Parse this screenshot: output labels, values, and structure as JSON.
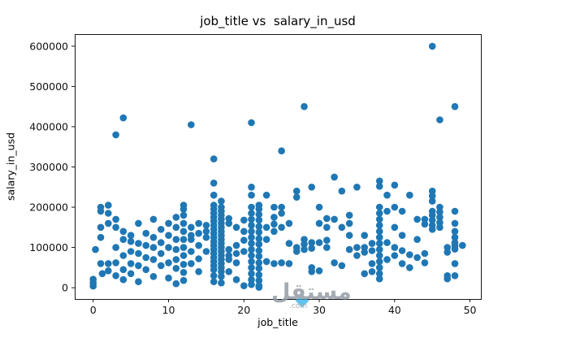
{
  "chart_data": {
    "type": "scatter",
    "title": "job_title vs  salary_in_usd",
    "xlabel": "job_title",
    "ylabel": "salary_in_usd",
    "xlim": [
      -2.45,
      51.45
    ],
    "ylim": [
      -28000,
      630000
    ],
    "x_ticks": [
      0,
      10,
      20,
      30,
      40,
      50
    ],
    "y_ticks": [
      0,
      100000,
      200000,
      300000,
      400000,
      500000,
      600000
    ],
    "marker_color": "#1f77b4",
    "grid": false,
    "legend": null,
    "points": [
      [
        0,
        4000
      ],
      [
        0,
        12000
      ],
      [
        0,
        21000
      ],
      [
        0.3,
        95000
      ],
      [
        1,
        200000
      ],
      [
        1,
        190000
      ],
      [
        1,
        150000
      ],
      [
        1,
        125000
      ],
      [
        1,
        60000
      ],
      [
        1.2,
        35000
      ],
      [
        2,
        205000
      ],
      [
        2,
        185000
      ],
      [
        2,
        160000
      ],
      [
        2,
        60000
      ],
      [
        2,
        42000
      ],
      [
        3,
        380000
      ],
      [
        3,
        170000
      ],
      [
        3,
        150000
      ],
      [
        3,
        100000
      ],
      [
        3,
        62000
      ],
      [
        3,
        30000
      ],
      [
        4,
        422000
      ],
      [
        4,
        140000
      ],
      [
        4,
        120000
      ],
      [
        4,
        80000
      ],
      [
        4,
        45000
      ],
      [
        4,
        20000
      ],
      [
        5,
        130000
      ],
      [
        5,
        115000
      ],
      [
        5,
        90000
      ],
      [
        5,
        60000
      ],
      [
        5,
        35000
      ],
      [
        6,
        160000
      ],
      [
        6,
        110000
      ],
      [
        6,
        85000
      ],
      [
        6,
        55000
      ],
      [
        6,
        15000
      ],
      [
        7,
        135000
      ],
      [
        7,
        105000
      ],
      [
        7,
        75000
      ],
      [
        7,
        45000
      ],
      [
        8,
        170000
      ],
      [
        8,
        125000
      ],
      [
        8,
        100000
      ],
      [
        8,
        70000
      ],
      [
        8,
        28000
      ],
      [
        9,
        145000
      ],
      [
        9,
        112000
      ],
      [
        9,
        85000
      ],
      [
        9,
        55000
      ],
      [
        10,
        160000
      ],
      [
        10,
        130000
      ],
      [
        10,
        100000
      ],
      [
        10,
        62000
      ],
      [
        10,
        24000
      ],
      [
        11,
        175000
      ],
      [
        11,
        150000
      ],
      [
        11,
        120000
      ],
      [
        11,
        95000
      ],
      [
        11,
        70000
      ],
      [
        11,
        48000
      ],
      [
        11,
        10000
      ],
      [
        12,
        205000
      ],
      [
        12,
        195000
      ],
      [
        12,
        180000
      ],
      [
        12,
        160000
      ],
      [
        12,
        140000
      ],
      [
        12,
        120000
      ],
      [
        12,
        100000
      ],
      [
        12,
        80000
      ],
      [
        12,
        58000
      ],
      [
        12,
        38000
      ],
      [
        12,
        18000
      ],
      [
        13,
        405000
      ],
      [
        13,
        150000
      ],
      [
        13,
        130000
      ],
      [
        13,
        120000
      ],
      [
        13,
        90000
      ],
      [
        13,
        60000
      ],
      [
        14,
        160000
      ],
      [
        14,
        135000
      ],
      [
        14,
        105000
      ],
      [
        14,
        72000
      ],
      [
        14,
        40000
      ],
      [
        15,
        155000
      ],
      [
        15,
        140000
      ],
      [
        15,
        125000
      ],
      [
        15,
        90000
      ],
      [
        16,
        320000
      ],
      [
        16,
        260000
      ],
      [
        16,
        230000
      ],
      [
        16,
        205000
      ],
      [
        16,
        195000
      ],
      [
        16,
        185000
      ],
      [
        16,
        175000
      ],
      [
        16,
        165000
      ],
      [
        16,
        155000
      ],
      [
        16,
        145000
      ],
      [
        16,
        135000
      ],
      [
        16,
        125000
      ],
      [
        16,
        115000
      ],
      [
        16,
        105000
      ],
      [
        16,
        95000
      ],
      [
        16,
        85000
      ],
      [
        16,
        75000
      ],
      [
        16,
        65000
      ],
      [
        16,
        55000
      ],
      [
        16,
        45000
      ],
      [
        16,
        30000
      ],
      [
        16,
        15000
      ],
      [
        17,
        215000
      ],
      [
        17,
        200000
      ],
      [
        17,
        190000
      ],
      [
        17,
        180000
      ],
      [
        17,
        170000
      ],
      [
        17,
        160000
      ],
      [
        17,
        150000
      ],
      [
        17,
        140000
      ],
      [
        17,
        130000
      ],
      [
        17,
        120000
      ],
      [
        17,
        110000
      ],
      [
        17,
        100000
      ],
      [
        17,
        90000
      ],
      [
        17,
        80000
      ],
      [
        17,
        70000
      ],
      [
        17,
        60000
      ],
      [
        17,
        50000
      ],
      [
        17,
        40000
      ],
      [
        17,
        28000
      ],
      [
        17,
        12000
      ],
      [
        18,
        172000
      ],
      [
        18,
        160000
      ],
      [
        18,
        95000
      ],
      [
        18,
        80000
      ],
      [
        18,
        70000
      ],
      [
        18,
        40000
      ],
      [
        19,
        150000
      ],
      [
        19,
        105000
      ],
      [
        19,
        85000
      ],
      [
        19,
        62000
      ],
      [
        19,
        20000
      ],
      [
        20,
        168000
      ],
      [
        20,
        140000
      ],
      [
        20,
        118000
      ],
      [
        20,
        90000
      ],
      [
        20,
        5000
      ],
      [
        21,
        410000
      ],
      [
        21,
        250000
      ],
      [
        21,
        230000
      ],
      [
        21,
        200000
      ],
      [
        21,
        185000
      ],
      [
        21,
        170000
      ],
      [
        21,
        155000
      ],
      [
        21,
        140000
      ],
      [
        21,
        125000
      ],
      [
        21,
        110000
      ],
      [
        21,
        95000
      ],
      [
        21,
        80000
      ],
      [
        21,
        65000
      ],
      [
        21,
        50000
      ],
      [
        21,
        35000
      ],
      [
        21,
        20000
      ],
      [
        21,
        8000
      ],
      [
        22,
        205000
      ],
      [
        22,
        195000
      ],
      [
        22,
        182000
      ],
      [
        22,
        168000
      ],
      [
        22,
        152000
      ],
      [
        22,
        138000
      ],
      [
        22,
        122000
      ],
      [
        22,
        108000
      ],
      [
        22,
        92000
      ],
      [
        22,
        78000
      ],
      [
        22,
        62000
      ],
      [
        22,
        48000
      ],
      [
        22,
        32000
      ],
      [
        22,
        18000
      ],
      [
        22,
        5000
      ],
      [
        22,
        1000
      ],
      [
        23,
        230000
      ],
      [
        23,
        150000
      ],
      [
        23,
        120000
      ],
      [
        23,
        65000
      ],
      [
        24,
        200000
      ],
      [
        24,
        175000
      ],
      [
        24,
        158000
      ],
      [
        24,
        140000
      ],
      [
        24,
        60000
      ],
      [
        25,
        340000
      ],
      [
        25,
        200000
      ],
      [
        25,
        185000
      ],
      [
        25,
        150000
      ],
      [
        25,
        62000
      ],
      [
        26,
        160000
      ],
      [
        26,
        110000
      ],
      [
        26,
        60000
      ],
      [
        27,
        240000
      ],
      [
        27,
        225000
      ],
      [
        27,
        100000
      ],
      [
        27,
        90000
      ],
      [
        28,
        450000
      ],
      [
        28,
        120000
      ],
      [
        28,
        108000
      ],
      [
        28,
        95000
      ],
      [
        29,
        250000
      ],
      [
        29,
        112000
      ],
      [
        29,
        98000
      ],
      [
        29,
        50000
      ],
      [
        29,
        40000
      ],
      [
        30,
        200000
      ],
      [
        30,
        160000
      ],
      [
        30,
        112000
      ],
      [
        30,
        42000
      ],
      [
        31,
        172000
      ],
      [
        31,
        150000
      ],
      [
        31,
        118000
      ],
      [
        31,
        100000
      ],
      [
        32,
        275000
      ],
      [
        32,
        170000
      ],
      [
        32,
        62000
      ],
      [
        33,
        240000
      ],
      [
        33,
        150000
      ],
      [
        33,
        55000
      ],
      [
        34,
        180000
      ],
      [
        34,
        160000
      ],
      [
        34,
        130000
      ],
      [
        34,
        95000
      ],
      [
        35,
        250000
      ],
      [
        35,
        100000
      ],
      [
        35,
        80000
      ],
      [
        36,
        130000
      ],
      [
        36,
        100000
      ],
      [
        36,
        88000
      ],
      [
        36,
        35000
      ],
      [
        37,
        110000
      ],
      [
        37,
        92000
      ],
      [
        37,
        60000
      ],
      [
        37,
        40000
      ],
      [
        38,
        265000
      ],
      [
        38,
        252000
      ],
      [
        38,
        200000
      ],
      [
        38,
        185000
      ],
      [
        38,
        170000
      ],
      [
        38,
        155000
      ],
      [
        38,
        140000
      ],
      [
        38,
        125000
      ],
      [
        38,
        110000
      ],
      [
        38,
        95000
      ],
      [
        38,
        80000
      ],
      [
        38,
        65000
      ],
      [
        38,
        50000
      ],
      [
        38,
        35000
      ],
      [
        38,
        22000
      ],
      [
        39,
        230000
      ],
      [
        39,
        190000
      ],
      [
        39,
        112000
      ],
      [
        39,
        70000
      ],
      [
        40,
        255000
      ],
      [
        40,
        200000
      ],
      [
        40,
        150000
      ],
      [
        40,
        100000
      ],
      [
        40,
        80000
      ],
      [
        41,
        190000
      ],
      [
        41,
        130000
      ],
      [
        41,
        92000
      ],
      [
        41,
        60000
      ],
      [
        42,
        230000
      ],
      [
        42,
        82000
      ],
      [
        42,
        50000
      ],
      [
        43,
        170000
      ],
      [
        43,
        120000
      ],
      [
        43,
        75000
      ],
      [
        44,
        170000
      ],
      [
        44,
        158000
      ],
      [
        44,
        85000
      ],
      [
        44,
        62000
      ],
      [
        45,
        600000
      ],
      [
        45,
        240000
      ],
      [
        45,
        228000
      ],
      [
        45,
        215000
      ],
      [
        45,
        190000
      ],
      [
        45,
        180000
      ],
      [
        45,
        168000
      ],
      [
        45,
        155000
      ],
      [
        45,
        145000
      ],
      [
        46,
        417000
      ],
      [
        46,
        200000
      ],
      [
        46,
        188000
      ],
      [
        46,
        175000
      ],
      [
        46,
        162000
      ],
      [
        46,
        150000
      ],
      [
        47,
        100000
      ],
      [
        47,
        88000
      ],
      [
        47,
        30000
      ],
      [
        47,
        22000
      ],
      [
        48,
        450000
      ],
      [
        48,
        190000
      ],
      [
        48,
        160000
      ],
      [
        48,
        140000
      ],
      [
        48,
        125000
      ],
      [
        48,
        112000
      ],
      [
        48,
        104000
      ],
      [
        48,
        96000
      ],
      [
        48,
        60000
      ],
      [
        48,
        30000
      ],
      [
        49,
        105000
      ]
    ]
  },
  "watermark": {
    "text": "مستقل",
    "suffix": ".com",
    "color": "#8e979f",
    "accent": "#29abe2"
  }
}
